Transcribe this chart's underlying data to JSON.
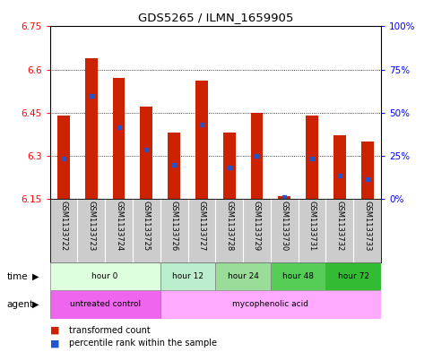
{
  "title": "GDS5265 / ILMN_1659905",
  "samples": [
    "GSM1133722",
    "GSM1133723",
    "GSM1133724",
    "GSM1133725",
    "GSM1133726",
    "GSM1133727",
    "GSM1133728",
    "GSM1133729",
    "GSM1133730",
    "GSM1133731",
    "GSM1133732",
    "GSM1133733"
  ],
  "bar_tops": [
    6.44,
    6.64,
    6.57,
    6.47,
    6.38,
    6.56,
    6.38,
    6.45,
    6.16,
    6.44,
    6.37,
    6.35
  ],
  "bar_base": 6.15,
  "blue_dot_values": [
    6.29,
    6.51,
    6.4,
    6.32,
    6.27,
    6.41,
    6.26,
    6.3,
    6.155,
    6.29,
    6.23,
    6.22
  ],
  "ylim_left": [
    6.15,
    6.75
  ],
  "ylim_right": [
    0,
    100
  ],
  "yticks_left": [
    6.15,
    6.3,
    6.45,
    6.6,
    6.75
  ],
  "yticks_right": [
    0,
    25,
    50,
    75,
    100
  ],
  "ytick_labels_left": [
    "6.15",
    "6.3",
    "6.45",
    "6.6",
    "6.75"
  ],
  "ytick_labels_right": [
    "0%",
    "25%",
    "50%",
    "75%",
    "100%"
  ],
  "bar_color": "#cc2200",
  "dot_color": "#2255cc",
  "grid_color": "#000000",
  "time_groups": [
    {
      "label": "hour 0",
      "start": 0,
      "end": 4,
      "color": "#ddffdd"
    },
    {
      "label": "hour 12",
      "start": 4,
      "end": 6,
      "color": "#bbeecc"
    },
    {
      "label": "hour 24",
      "start": 6,
      "end": 8,
      "color": "#99dd99"
    },
    {
      "label": "hour 48",
      "start": 8,
      "end": 10,
      "color": "#55cc55"
    },
    {
      "label": "hour 72",
      "start": 10,
      "end": 12,
      "color": "#33bb33"
    }
  ],
  "agent_groups": [
    {
      "label": "untreated control",
      "start": 0,
      "end": 4,
      "color": "#ee66ee"
    },
    {
      "label": "mycophenolic acid",
      "start": 4,
      "end": 12,
      "color": "#ffaaff"
    }
  ],
  "legend_red_label": "transformed count",
  "legend_blue_label": "percentile rank within the sample",
  "time_label": "time",
  "agent_label": "agent",
  "bar_width": 0.45,
  "xlabel_color": "#cccccc",
  "fig_width": 4.83,
  "fig_height": 3.93,
  "dpi": 100
}
